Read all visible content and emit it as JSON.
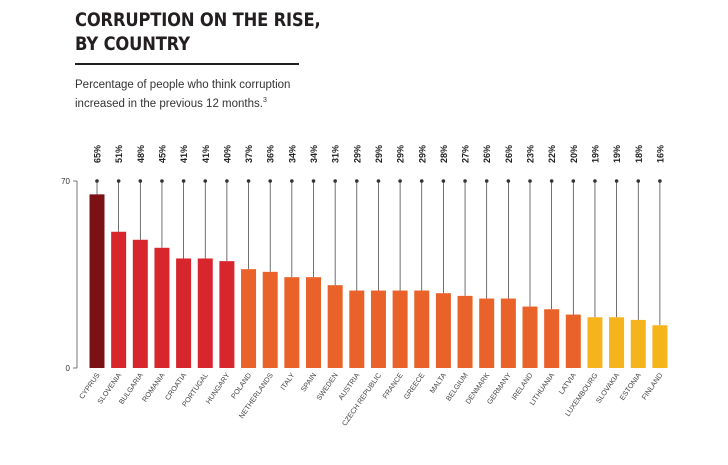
{
  "header": {
    "title_line1": "CORRUPTION ON THE RISE,",
    "title_line2": "BY COUNTRY",
    "subtitle": "Percentage of people who think corruption increased in the previous 12 months.",
    "subtitle_note": "3"
  },
  "chart_data": {
    "type": "bar",
    "ylim": [
      0,
      70
    ],
    "y_ticks": [
      "0",
      "70"
    ],
    "grid": false,
    "categories": [
      "CYPRUS",
      "SLOVENIA",
      "BULGARIA",
      "ROMANIA",
      "CROATIA",
      "PORTUGAL",
      "HUNGARY",
      "POLAND",
      "NETHERLANDS",
      "ITALY",
      "SPAIN",
      "SWEDEN",
      "AUSTRIA",
      "CZECH REPUBLIC",
      "FRANCE",
      "GREECE",
      "MALTA",
      "BELGIUM",
      "DENMARK",
      "GERMANY",
      "IRELAND",
      "LITHUANIA",
      "LATVIA",
      "LUXEMBOURG",
      "SLOVAKIA",
      "ESTONIA",
      "FINLAND"
    ],
    "values": [
      65,
      51,
      48,
      45,
      41,
      41,
      40,
      37,
      36,
      34,
      34,
      31,
      29,
      29,
      29,
      29,
      28,
      27,
      26,
      26,
      23,
      22,
      20,
      19,
      19,
      18,
      16
    ],
    "value_labels": [
      "65%",
      "51%",
      "48%",
      "45%",
      "41%",
      "41%",
      "40%",
      "37%",
      "36%",
      "34%",
      "34%",
      "31%",
      "29%",
      "29%",
      "29%",
      "29%",
      "28%",
      "27%",
      "26%",
      "26%",
      "23%",
      "22%",
      "20%",
      "19%",
      "19%",
      "18%",
      "16%"
    ],
    "colors": {
      "top": "#7b1115",
      "high": "#d7262c",
      "mid": "#e8622a",
      "low": "#f5b41c",
      "line": "#333333",
      "axis": "#555555"
    }
  }
}
